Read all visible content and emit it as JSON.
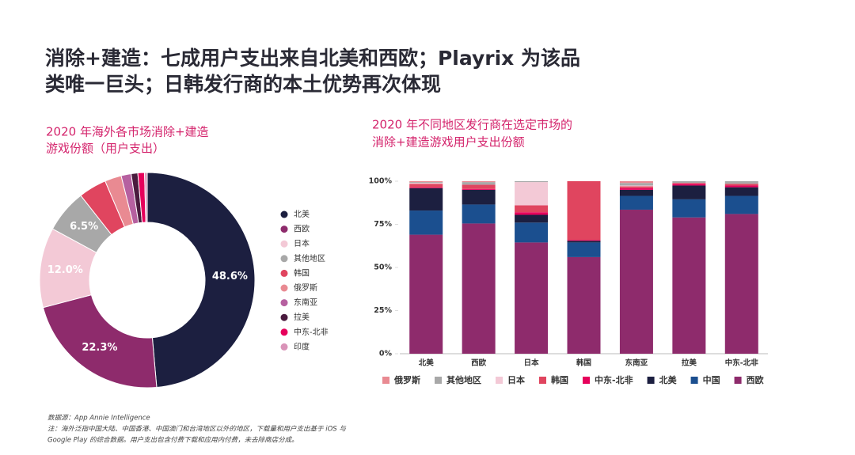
{
  "title": [
    "消除+建造：七成用户支出来自北美和西欧；Playrix 为该品",
    "类唯一巨头；日韩发行商的本土优势再次体现"
  ],
  "chart_data": [
    {
      "type": "pie",
      "donut": true,
      "legend": "right",
      "title": [
        "2020 年海外各市场消除+建造",
        "游戏份额（用户支出）"
      ],
      "categories": [
        "北美",
        "西欧",
        "日本",
        "其他地区",
        "韩国",
        "俄罗斯",
        "东南亚",
        "拉美",
        "中东-北非",
        "印度"
      ],
      "values": [
        48.6,
        22.3,
        12.0,
        6.5,
        4.2,
        2.5,
        1.5,
        1.0,
        1.0,
        0.4
      ],
      "value_labels": [
        "48.6%",
        "22.3%",
        "12.0%",
        "6.5%",
        null,
        null,
        null,
        null,
        null,
        null
      ],
      "colors": [
        "#1c1f40",
        "#8e2b6c",
        "#f3c9d6",
        "#a8a8a8",
        "#e0455f",
        "#e98a92",
        "#b660a0",
        "#4a1b3e",
        "#e6005b",
        "#d993b8"
      ]
    },
    {
      "type": "bar",
      "stacked": true,
      "legend": "bottom",
      "title": [
        "2020 年不同地区发行商在选定市场的",
        "消除+建造游戏用户支出份额"
      ],
      "categories": [
        "北美",
        "西欧",
        "日本",
        "韩国",
        "东南亚",
        "拉美",
        "中东-北非"
      ],
      "ylim": [
        0,
        100
      ],
      "yticks": [
        {
          "value": 0,
          "label": "0%"
        },
        {
          "value": 25,
          "label": "25%"
        },
        {
          "value": 50,
          "label": "50%"
        },
        {
          "value": 75,
          "label": "75%"
        },
        {
          "value": 100,
          "label": "100%"
        }
      ],
      "series": [
        {
          "name": "西欧",
          "color": "#8e2b6c",
          "values": [
            69,
            75.5,
            64.5,
            56,
            83.5,
            79,
            81
          ]
        },
        {
          "name": "中国",
          "color": "#1b4f8f",
          "values": [
            14,
            11,
            11.5,
            8.5,
            8,
            10.5,
            10.5
          ]
        },
        {
          "name": "北美",
          "color": "#1c1f40",
          "values": [
            13,
            8.5,
            4.5,
            1,
            3.5,
            8,
            5
          ]
        },
        {
          "name": "中东-北非",
          "color": "#e6005b",
          "values": [
            0.5,
            0.5,
            1.5,
            0.5,
            1,
            1,
            1
          ]
        },
        {
          "name": "韩国",
          "color": "#e0455f",
          "values": [
            2,
            2.5,
            4,
            34,
            1,
            0.5,
            1
          ]
        },
        {
          "name": "日本",
          "color": "#f3c9d6",
          "values": [
            0.5,
            0,
            13.5,
            0,
            0.5,
            0,
            0
          ]
        },
        {
          "name": "其他地区",
          "color": "#a8a8a8",
          "values": [
            0.5,
            1.5,
            0.5,
            0,
            1.5,
            1,
            1.5
          ]
        },
        {
          "name": "俄罗斯",
          "color": "#e98a92",
          "values": [
            0.5,
            0.5,
            0,
            0,
            1,
            0,
            0
          ]
        }
      ]
    }
  ],
  "footnotes": [
    "数据源：App Annie Intelligence",
    "注：海外泛指中国大陆、中国香港、中国澳门和台湾地区以外的地区，下载量和用户支出基于 iOS 与",
    "Google Play 的综合数据。用户支出包含付费下载和应用内付费，未去除商店分成。"
  ]
}
